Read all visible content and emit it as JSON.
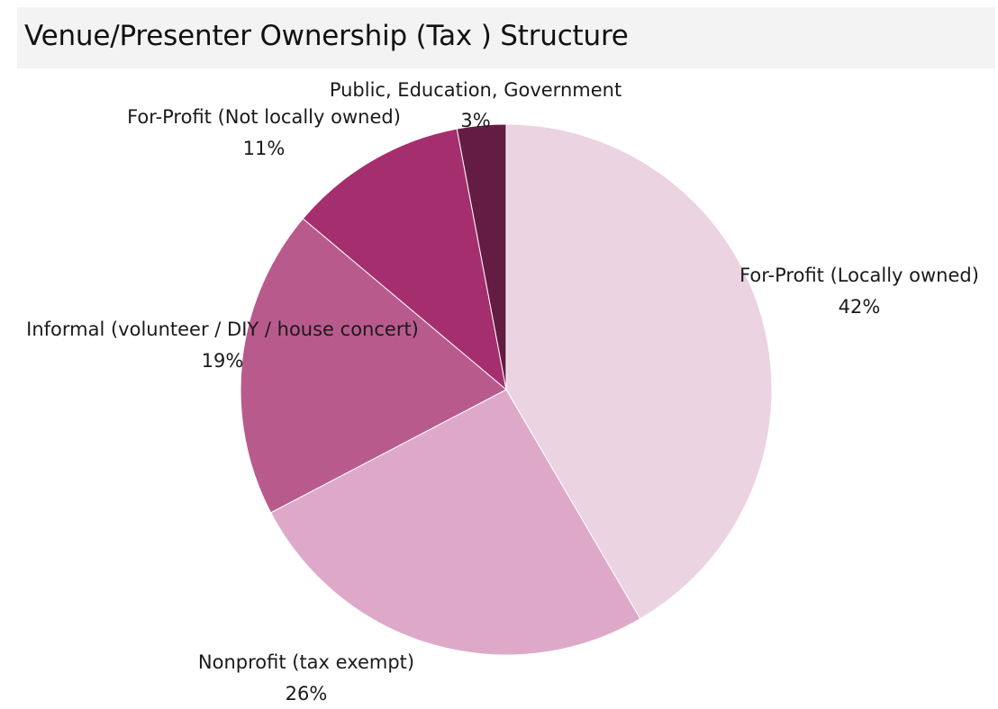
{
  "title": "Venue/Presenter Ownership (Tax ) Structure",
  "chart_data": {
    "type": "pie",
    "title": "Venue/Presenter Ownership (Tax ) Structure",
    "start_angle_deg": 0,
    "direction": "clockwise",
    "slices": [
      {
        "label": "For-Profit (Locally owned)",
        "value": 42,
        "pct_label": "42%",
        "color": "#ebd3e1"
      },
      {
        "label": "Nonprofit (tax exempt)",
        "value": 26,
        "pct_label": "26%",
        "color": "#dea9c9"
      },
      {
        "label": "Informal (volunteer / DIY / house concert)",
        "value": 19,
        "pct_label": "19%",
        "color": "#b95a8d"
      },
      {
        "label": "For-Profit (Not locally owned)",
        "value": 11,
        "pct_label": "11%",
        "color": "#a52f6e"
      },
      {
        "label": "Public, Education, Government",
        "value": 3,
        "pct_label": "3%",
        "color": "#651c43"
      }
    ]
  }
}
